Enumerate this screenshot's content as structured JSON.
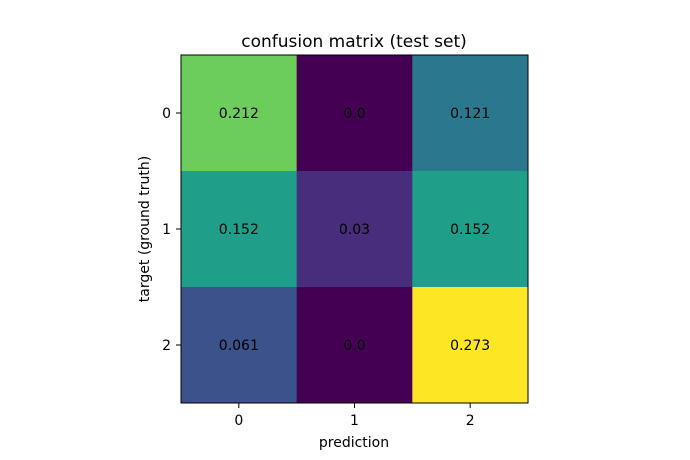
{
  "chart_data": {
    "type": "heatmap",
    "title": "confusion matrix (test set)",
    "xlabel": "prediction",
    "ylabel": "target (ground truth)",
    "x_categories": [
      "0",
      "1",
      "2"
    ],
    "y_categories": [
      "0",
      "1",
      "2"
    ],
    "values": [
      [
        0.212,
        0.0,
        0.121
      ],
      [
        0.152,
        0.03,
        0.152
      ],
      [
        0.061,
        0.0,
        0.273
      ]
    ],
    "cell_labels": [
      [
        "0.212",
        "0.0",
        "0.121"
      ],
      [
        "0.152",
        "0.03",
        "0.152"
      ],
      [
        "0.061",
        "0.0",
        "0.273"
      ]
    ],
    "colormap": "viridis",
    "cell_colors": [
      [
        "#6ccd5a",
        "#440154",
        "#2a788e"
      ],
      [
        "#1f9e89",
        "#472d7b",
        "#1f9e89"
      ],
      [
        "#3b528b",
        "#440154",
        "#fde725"
      ]
    ],
    "vmin": 0.0,
    "vmax": 0.273,
    "grid": false,
    "legend": "none"
  }
}
